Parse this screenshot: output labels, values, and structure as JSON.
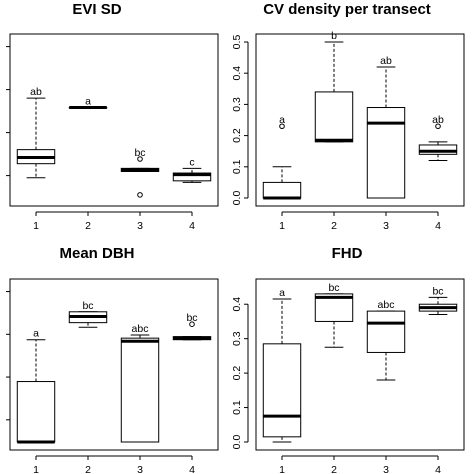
{
  "chart_data": [
    {
      "type": "box",
      "title": "EVI SD",
      "categories": [
        "1",
        "2",
        "3",
        "4"
      ],
      "y_ticks": [],
      "ylim": [
        0,
        1
      ],
      "boxes": [
        {
          "lw": 0.13,
          "q1": 0.22,
          "med": 0.26,
          "q3": 0.31,
          "uw": 0.64,
          "out": [],
          "letter": "ab"
        },
        {
          "lw": 0.58,
          "q1": 0.58,
          "med": 0.58,
          "q3": 0.58,
          "uw": 0.58,
          "out": [],
          "letter": "a"
        },
        {
          "lw": 0.17,
          "q1": 0.17,
          "med": 0.18,
          "q3": 0.19,
          "uw": 0.19,
          "out": [
            0.25,
            0.02
          ],
          "letter": "bc"
        },
        {
          "lw": 0.1,
          "q1": 0.11,
          "med": 0.15,
          "q3": 0.16,
          "uw": 0.19,
          "out": [],
          "letter": "c"
        }
      ]
    },
    {
      "type": "box",
      "title": "CV density per transect",
      "categories": [
        "1",
        "2",
        "3",
        "4"
      ],
      "y_ticks": [
        "0.0",
        "0.1",
        "0.2",
        "0.3",
        "0.4",
        "0.5"
      ],
      "ylim": [
        0,
        0.5
      ],
      "boxes": [
        {
          "lw": 0.0,
          "q1": 0.0,
          "med": 0.0,
          "q3": 0.05,
          "uw": 0.1,
          "out": [
            0.23
          ],
          "letter": "a"
        },
        {
          "lw": 0.18,
          "q1": 0.18,
          "med": 0.185,
          "q3": 0.34,
          "uw": 0.5,
          "out": [],
          "letter": "b"
        },
        {
          "lw": 0.0,
          "q1": 0.0,
          "med": 0.24,
          "q3": 0.29,
          "uw": 0.42,
          "out": [],
          "letter": "ab"
        },
        {
          "lw": 0.12,
          "q1": 0.14,
          "med": 0.15,
          "q3": 0.17,
          "uw": 0.18,
          "out": [
            0.23
          ],
          "letter": "ab"
        }
      ]
    },
    {
      "type": "box",
      "title": "Mean DBH",
      "categories": [
        "1",
        "2",
        "3",
        "4"
      ],
      "y_ticks": [],
      "ylim": [
        0,
        1
      ],
      "boxes": [
        {
          "lw": 0.0,
          "q1": 0.0,
          "med": 0.0,
          "q3": 0.39,
          "uw": 0.66,
          "out": [],
          "letter": "a"
        },
        {
          "lw": 0.74,
          "q1": 0.77,
          "med": 0.81,
          "q3": 0.84,
          "uw": 0.84,
          "out": [],
          "letter": "bc"
        },
        {
          "lw": 0.0,
          "q1": 0.0,
          "med": 0.65,
          "q3": 0.67,
          "uw": 0.69,
          "out": [],
          "letter": "abc"
        },
        {
          "lw": 0.66,
          "q1": 0.66,
          "med": 0.67,
          "q3": 0.68,
          "uw": 0.68,
          "out": [
            0.76
          ],
          "letter": "bc"
        }
      ]
    },
    {
      "type": "box",
      "title": "FHD",
      "categories": [
        "1",
        "2",
        "3",
        "4"
      ],
      "y_ticks": [
        "0.0",
        "0.1",
        "0.2",
        "0.3",
        "0.4"
      ],
      "ylim": [
        0,
        0.45
      ],
      "boxes": [
        {
          "lw": 0.0,
          "q1": 0.015,
          "med": 0.075,
          "q3": 0.285,
          "uw": 0.415,
          "out": [],
          "letter": "a"
        },
        {
          "lw": 0.275,
          "q1": 0.35,
          "med": 0.42,
          "q3": 0.43,
          "uw": 0.43,
          "out": [],
          "letter": "bc"
        },
        {
          "lw": 0.18,
          "q1": 0.26,
          "med": 0.345,
          "q3": 0.38,
          "uw": 0.38,
          "out": [],
          "letter": "abc"
        },
        {
          "lw": 0.37,
          "q1": 0.38,
          "med": 0.39,
          "q3": 0.4,
          "uw": 0.42,
          "out": [],
          "letter": "bc"
        }
      ]
    }
  ]
}
